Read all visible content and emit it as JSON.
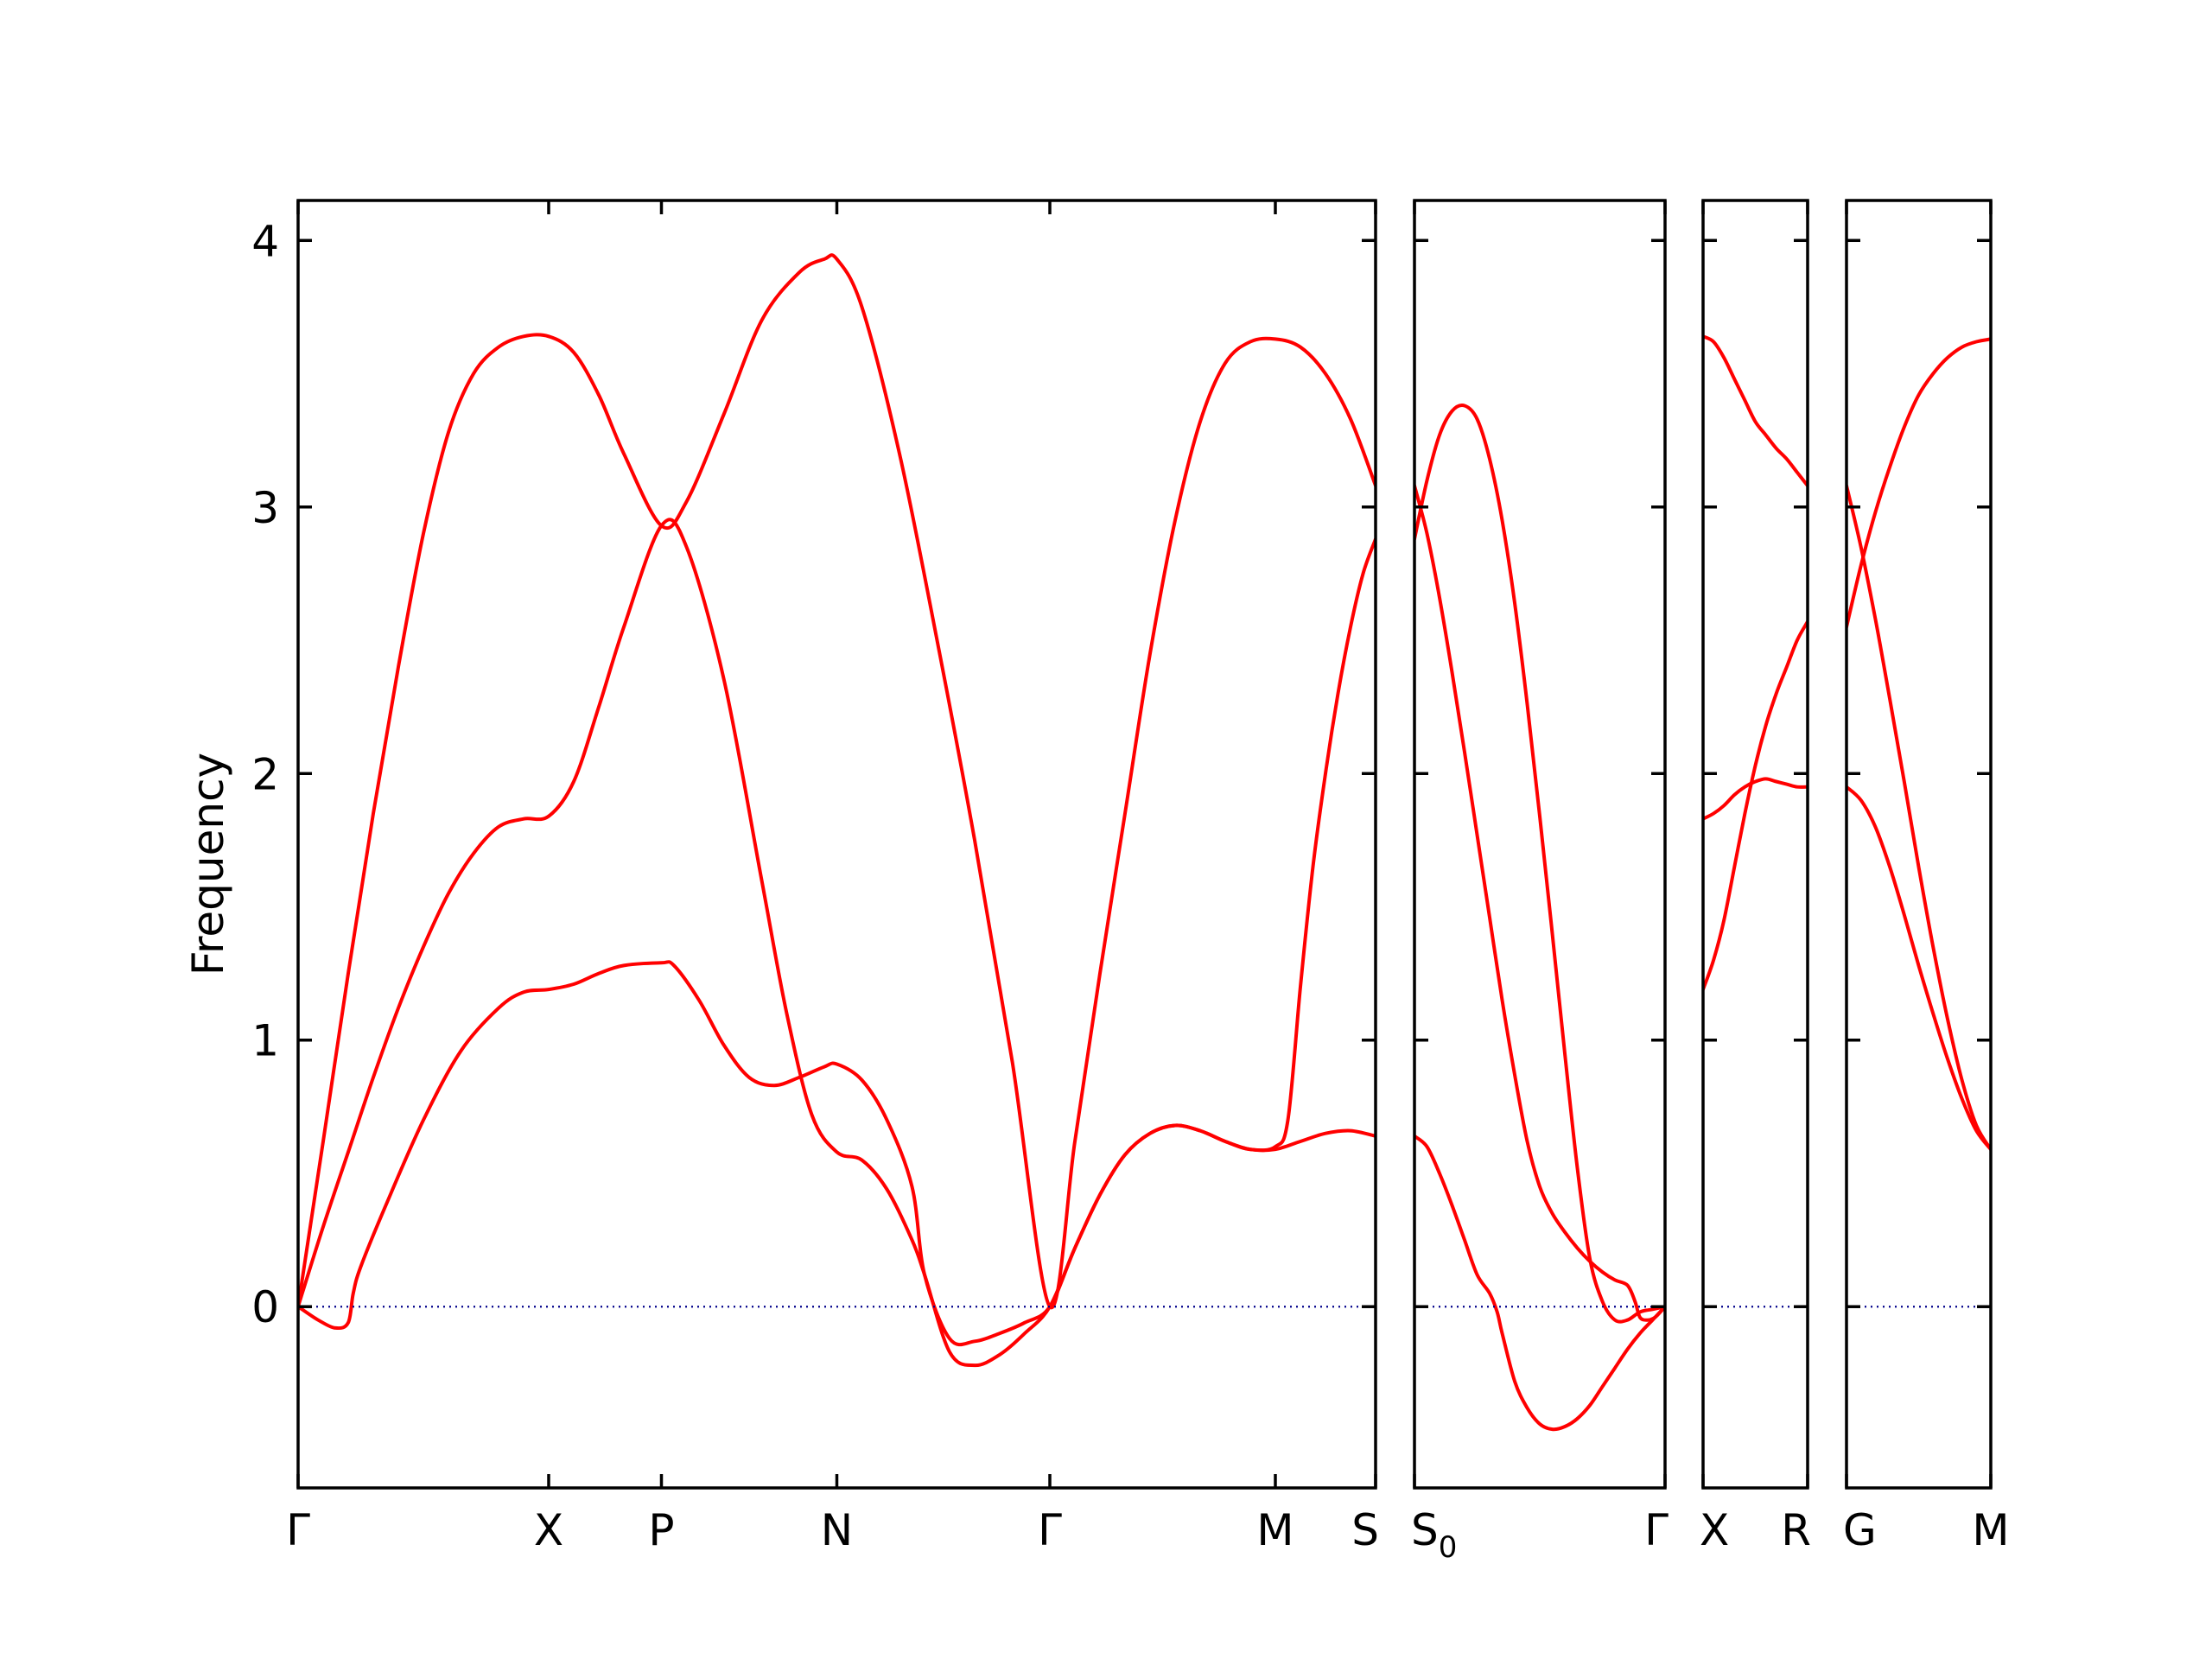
{
  "chart_data": {
    "type": "line",
    "ylabel": "Frequency",
    "ylim": [
      -0.68,
      4.15
    ],
    "yticks": [
      0,
      1,
      2,
      3,
      4
    ],
    "ytick_labels": [
      "0",
      "1",
      "2",
      "3",
      "4"
    ],
    "band_color": "#ff0000",
    "zero_line_color": "#00008b",
    "panels": [
      {
        "name": "Γ–X–P–N–Γ–M–S",
        "x_range": [
          0,
          4.3
        ],
        "ticks": [
          {
            "x": 0,
            "label": "Γ"
          },
          {
            "x": 1.0,
            "label": "X"
          },
          {
            "x": 1.45,
            "label": "P"
          },
          {
            "x": 2.15,
            "label": "N"
          },
          {
            "x": 3.0,
            "label": "Γ"
          },
          {
            "x": 3.9,
            "label": "M"
          },
          {
            "x": 4.3,
            "label": "S"
          }
        ],
        "series": [
          {
            "x": [
              0,
              0.1,
              0.2,
              0.3,
              0.4,
              0.5,
              0.6,
              0.7,
              0.8,
              0.9,
              1.0,
              1.1,
              1.2,
              1.3,
              1.45,
              1.55,
              1.7,
              1.85,
              2.0,
              2.1,
              2.15,
              2.25,
              2.4,
              2.55,
              2.7,
              2.85,
              3.0,
              3.1,
              3.2,
              3.3,
              3.4,
              3.5,
              3.6,
              3.7,
              3.8,
              3.9,
              4.0,
              4.1,
              4.2,
              4.3
            ],
            "y": [
              0.0,
              0.62,
              1.25,
              1.85,
              2.4,
              2.9,
              3.28,
              3.5,
              3.6,
              3.64,
              3.64,
              3.58,
              3.42,
              3.2,
              2.93,
              3.02,
              3.35,
              3.7,
              3.88,
              3.93,
              3.93,
              3.75,
              3.2,
              2.5,
              1.75,
              0.92,
              0.0,
              0.62,
              1.25,
              1.85,
              2.45,
              2.95,
              3.32,
              3.54,
              3.62,
              3.63,
              3.6,
              3.5,
              3.33,
              3.08
            ]
          },
          {
            "x": [
              0,
              0.1,
              0.2,
              0.3,
              0.4,
              0.5,
              0.6,
              0.7,
              0.8,
              0.9,
              1.0,
              1.1,
              1.2,
              1.3,
              1.45,
              1.55,
              1.7,
              1.85,
              1.95,
              2.05,
              2.15,
              2.25,
              2.35,
              2.45,
              2.5,
              2.6,
              2.7,
              2.8,
              2.9,
              3.0,
              3.1,
              3.2,
              3.3,
              3.4,
              3.5,
              3.6,
              3.7,
              3.8,
              3.9,
              4.0,
              4.1,
              4.2,
              4.3
            ],
            "y": [
              0.0,
              0.3,
              0.58,
              0.86,
              1.12,
              1.35,
              1.55,
              1.7,
              1.8,
              1.83,
              1.84,
              1.97,
              2.25,
              2.55,
              2.93,
              2.85,
              2.35,
              1.6,
              1.1,
              0.72,
              0.58,
              0.55,
              0.44,
              0.25,
              0.12,
              -0.17,
              -0.22,
              -0.18,
              -0.1,
              0.0,
              0.22,
              0.42,
              0.57,
              0.65,
              0.68,
              0.66,
              0.62,
              0.59,
              0.59,
              0.62,
              0.65,
              0.66,
              0.64
            ]
          },
          {
            "x": [
              0,
              0.08,
              0.15,
              0.2,
              0.22,
              0.25,
              0.35,
              0.5,
              0.65,
              0.8,
              0.9,
              1.0,
              1.1,
              1.2,
              1.3,
              1.45,
              1.5,
              1.6,
              1.7,
              1.8,
              1.9,
              2.0,
              2.1,
              2.15,
              2.25,
              2.35,
              2.45,
              2.5,
              2.6,
              2.7,
              2.8,
              2.9,
              3.0,
              3.1,
              3.2,
              3.3,
              3.4,
              3.5,
              3.6,
              3.7,
              3.8,
              3.9,
              3.95,
              4.0,
              4.05,
              4.1,
              4.15,
              4.2,
              4.25,
              4.3
            ],
            "y": [
              0.0,
              -0.05,
              -0.08,
              -0.06,
              0.05,
              0.15,
              0.38,
              0.7,
              0.96,
              1.12,
              1.18,
              1.19,
              1.21,
              1.25,
              1.28,
              1.29,
              1.28,
              1.15,
              0.98,
              0.86,
              0.83,
              0.86,
              0.9,
              0.91,
              0.85,
              0.7,
              0.45,
              0.12,
              -0.12,
              -0.13,
              -0.1,
              -0.06,
              0.0,
              0.22,
              0.42,
              0.57,
              0.65,
              0.68,
              0.66,
              0.62,
              0.59,
              0.6,
              0.7,
              1.2,
              1.65,
              2.0,
              2.3,
              2.55,
              2.75,
              2.88
            ]
          },
          {
            "x": [
              0,
              4.3
            ],
            "y": [
              0,
              0
            ],
            "kind": "zero"
          }
        ]
      },
      {
        "name": "S0–Γ",
        "x_range": [
          0,
          1.0
        ],
        "ticks": [
          {
            "x": 0,
            "label": "S0"
          },
          {
            "x": 1.0,
            "label": "Γ"
          }
        ],
        "series": [
          {
            "x": [
              0,
              0.05,
              0.1,
              0.15,
              0.2,
              0.25,
              0.3,
              0.35,
              0.4,
              0.45,
              0.5,
              0.55,
              0.6,
              0.65,
              0.7,
              0.75,
              0.8,
              0.85,
              0.9,
              0.95,
              1.0
            ],
            "y": [
              2.88,
              3.1,
              3.27,
              3.36,
              3.38,
              3.33,
              3.18,
              2.95,
              2.64,
              2.26,
              1.84,
              1.4,
              0.95,
              0.52,
              0.18,
              0.02,
              -0.05,
              -0.05,
              -0.02,
              -0.01,
              0.0
            ]
          },
          {
            "x": [
              0,
              0.05,
              0.1,
              0.15,
              0.2,
              0.25,
              0.3,
              0.35,
              0.4,
              0.45,
              0.5,
              0.55,
              0.6,
              0.65,
              0.7,
              0.75,
              0.8,
              0.85,
              0.88,
              0.9,
              0.93,
              0.96,
              1.0
            ],
            "y": [
              3.08,
              2.9,
              2.66,
              2.38,
              2.08,
              1.77,
              1.46,
              1.15,
              0.87,
              0.62,
              0.45,
              0.35,
              0.28,
              0.22,
              0.17,
              0.13,
              0.1,
              0.08,
              0.02,
              -0.04,
              -0.05,
              -0.04,
              0.0
            ]
          },
          {
            "x": [
              0,
              0.05,
              0.1,
              0.15,
              0.2,
              0.25,
              0.3,
              0.33,
              0.35,
              0.4,
              0.45,
              0.5,
              0.55,
              0.6,
              0.65,
              0.7,
              0.75,
              0.8,
              0.85,
              0.9,
              0.95,
              1.0
            ],
            "y": [
              0.64,
              0.6,
              0.5,
              0.38,
              0.25,
              0.12,
              0.05,
              -0.02,
              -0.1,
              -0.28,
              -0.38,
              -0.44,
              -0.46,
              -0.45,
              -0.42,
              -0.37,
              -0.3,
              -0.23,
              -0.16,
              -0.1,
              -0.05,
              0.0
            ]
          },
          {
            "x": [
              0,
              1.0
            ],
            "y": [
              0,
              0
            ],
            "kind": "zero"
          }
        ]
      },
      {
        "name": "X–R",
        "x_range": [
          0,
          1.0
        ],
        "ticks": [
          {
            "x": 0,
            "label": "X"
          },
          {
            "x": 1.0,
            "label": "R"
          }
        ],
        "series": [
          {
            "x": [
              0,
              0.1,
              0.2,
              0.3,
              0.4,
              0.5,
              0.6,
              0.7,
              0.8,
              0.9,
              1.0
            ],
            "y": [
              3.64,
              3.62,
              3.56,
              3.48,
              3.4,
              3.32,
              3.27,
              3.22,
              3.18,
              3.13,
              3.08
            ]
          },
          {
            "x": [
              0,
              0.1,
              0.2,
              0.3,
              0.4,
              0.5,
              0.6,
              0.7,
              0.8,
              0.9,
              1.0
            ],
            "y": [
              1.83,
              1.85,
              1.88,
              1.92,
              1.95,
              1.97,
              1.98,
              1.97,
              1.96,
              1.95,
              1.95
            ]
          },
          {
            "x": [
              0,
              0.1,
              0.2,
              0.3,
              0.4,
              0.5,
              0.6,
              0.7,
              0.8,
              0.9,
              1.0
            ],
            "y": [
              1.19,
              1.3,
              1.45,
              1.65,
              1.85,
              2.03,
              2.18,
              2.3,
              2.4,
              2.5,
              2.57
            ]
          },
          {
            "x": [
              0,
              1.0
            ],
            "y": [
              0,
              0
            ],
            "kind": "zero"
          }
        ]
      },
      {
        "name": "G–M",
        "x_range": [
          0,
          1.0
        ],
        "ticks": [
          {
            "x": 0,
            "label": "G"
          },
          {
            "x": 1.0,
            "label": "M"
          }
        ],
        "series": [
          {
            "x": [
              0,
              0.1,
              0.2,
              0.3,
              0.4,
              0.5,
              0.6,
              0.7,
              0.8,
              0.9,
              1.0
            ],
            "y": [
              2.55,
              2.78,
              2.98,
              3.15,
              3.3,
              3.42,
              3.5,
              3.56,
              3.6,
              3.62,
              3.63
            ]
          },
          {
            "x": [
              0,
              0.1,
              0.2,
              0.3,
              0.4,
              0.5,
              0.6,
              0.7,
              0.8,
              0.9,
              1.0
            ],
            "y": [
              3.08,
              2.85,
              2.58,
              2.28,
              1.97,
              1.65,
              1.35,
              1.08,
              0.85,
              0.68,
              0.59
            ]
          },
          {
            "x": [
              0,
              0.1,
              0.2,
              0.3,
              0.4,
              0.5,
              0.6,
              0.7,
              0.8,
              0.9,
              1.0
            ],
            "y": [
              1.95,
              1.9,
              1.8,
              1.65,
              1.47,
              1.28,
              1.1,
              0.93,
              0.78,
              0.66,
              0.59
            ]
          },
          {
            "x": [
              0,
              1.0
            ],
            "y": [
              0,
              0
            ],
            "kind": "zero"
          }
        ]
      }
    ]
  }
}
